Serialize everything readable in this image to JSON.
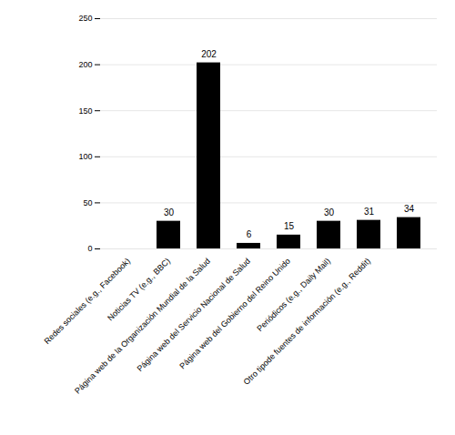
{
  "chart_data": {
    "type": "bar",
    "categories": [
      "Redes sociales (e.g., Facebook)",
      "Noticias TV (e.g., BBC)",
      "Página web de la Organización Mundial de la Salud",
      "Página web del Servicio Nacional de Salud",
      "Página web del Gobierno del Reino Unido",
      "Periódicos (e.g., Daily Mail)",
      "Otro tipode fuentes de información (e.g., Reddit)",
      null
    ],
    "values": [
      0,
      30,
      202,
      6,
      15,
      30,
      31,
      34
    ],
    "value_labels": [
      null,
      "30",
      "202",
      "6",
      "15",
      "30",
      "31",
      "34"
    ],
    "data_labels": true,
    "ylim": [
      0,
      250
    ],
    "yticks": [
      0,
      50,
      100,
      150,
      200,
      250
    ],
    "grid": true
  }
}
